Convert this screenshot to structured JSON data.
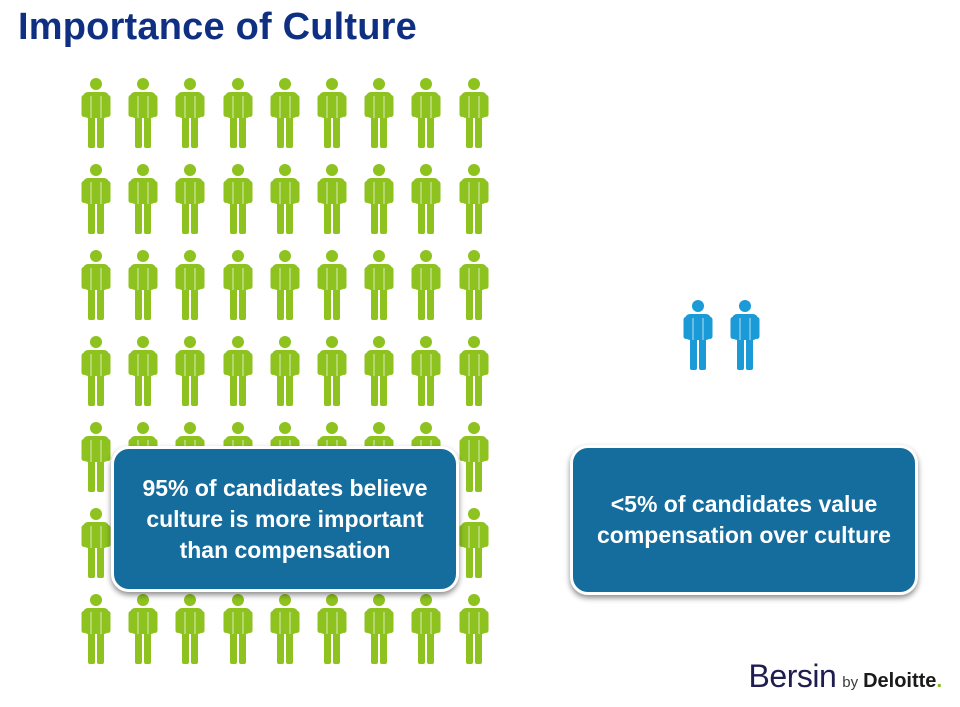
{
  "title": "Importance of Culture",
  "left_group": {
    "rows": 7,
    "columns": 9,
    "color": "#8dc21f",
    "callout_text": "95% of candidates believe culture is more important than compensation"
  },
  "right_group": {
    "count": 2,
    "color": "#1a9ad6",
    "callout_text": "<5% of candidates value compensation over culture"
  },
  "callout_color": "#156d9e",
  "brand": {
    "name": "Bersin",
    "by": "by",
    "company": "Deloitte",
    "dot": ".",
    "dot_color": "#86bc25"
  }
}
